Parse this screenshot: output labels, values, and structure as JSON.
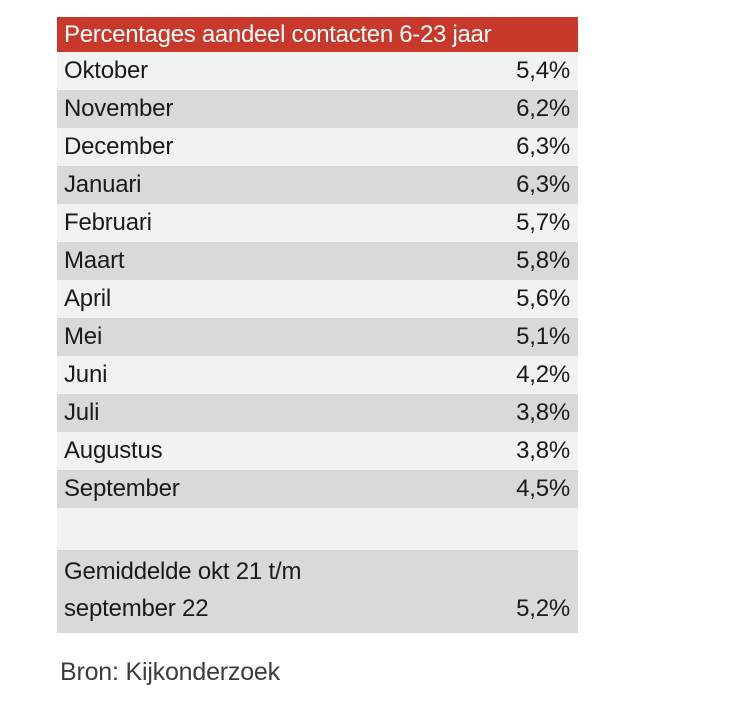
{
  "table": {
    "title": "Percentages aandeel contacten 6-23 jaar",
    "rows": [
      {
        "label": "Oktober",
        "value": "5,4%"
      },
      {
        "label": "November",
        "value": "6,2%"
      },
      {
        "label": "December",
        "value": "6,3%"
      },
      {
        "label": "Januari",
        "value": "6,3%"
      },
      {
        "label": "Februari",
        "value": "5,7%"
      },
      {
        "label": "Maart",
        "value": "5,8%"
      },
      {
        "label": "April",
        "value": "5,6%"
      },
      {
        "label": "Mei",
        "value": "5,1%"
      },
      {
        "label": "Juni",
        "value": "4,2%"
      },
      {
        "label": "Juli",
        "value": "3,8%"
      },
      {
        "label": "Augustus",
        "value": "3,8%"
      },
      {
        "label": "September",
        "value": "4,5%"
      }
    ],
    "summary": {
      "label_line1": "Gemiddelde okt 21 t/m",
      "label_line2": "september 22",
      "value": "5,2%"
    }
  },
  "source": "Bron: Kijkonderzoek",
  "colors": {
    "header_bg": "#C9392B",
    "header_text": "#FFFFFF",
    "row_light": "#F2F2F2",
    "row_gray": "#D9D9D9",
    "text": "#1A1A1A",
    "source_text": "#3C3C3C"
  },
  "chart_data": {
    "type": "table",
    "title": "Percentages aandeel contacten 6-23 jaar",
    "categories": [
      "Oktober",
      "November",
      "December",
      "Januari",
      "Februari",
      "Maart",
      "April",
      "Mei",
      "Juni",
      "Juli",
      "Augustus",
      "September"
    ],
    "values": [
      5.4,
      6.2,
      6.3,
      6.3,
      5.7,
      5.8,
      5.6,
      5.1,
      4.2,
      3.8,
      3.8,
      4.5
    ],
    "unit": "%",
    "decimal_separator": ",",
    "average_label": "Gemiddelde okt 21 t/m september 22",
    "average_value": 5.2,
    "source": "Bron: Kijkonderzoek",
    "layout": "two-column table, month left-aligned, value right-aligned, alternating light/gray row shading, red title bar"
  }
}
